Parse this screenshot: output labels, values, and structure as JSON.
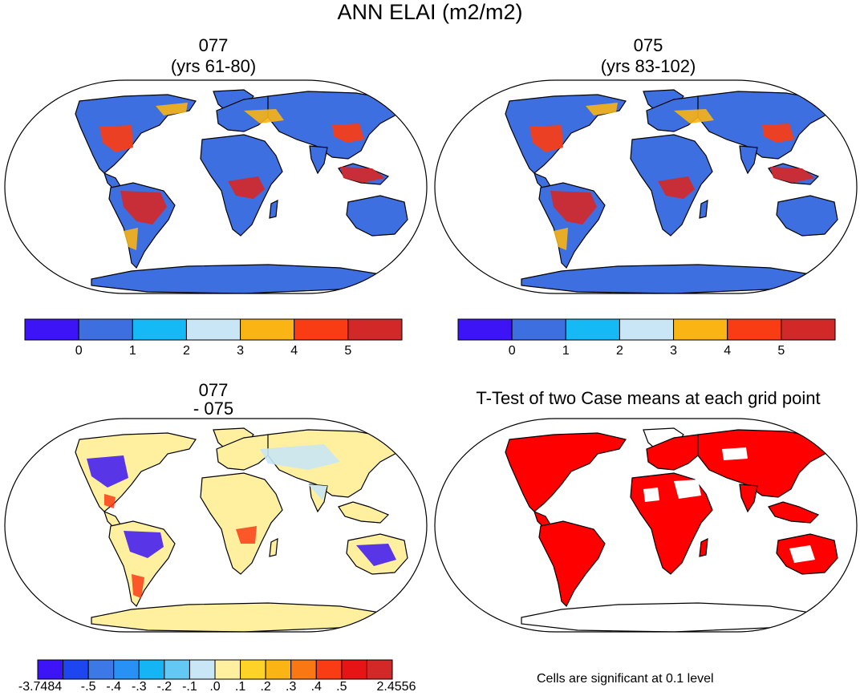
{
  "page_title": "ANN ELAI (m2/m2)",
  "panels": [
    {
      "line1": "077",
      "line2": "(yrs 61-80)"
    },
    {
      "line1": "075",
      "line2": "(yrs 83-102)"
    },
    {
      "line1": "077",
      "line2": "- 075"
    },
    {
      "line1": "T-Test of two Case means at each grid point",
      "line2": ""
    }
  ],
  "colorbar_top": {
    "colors": [
      "#3c14f5",
      "#3e6fe0",
      "#14b9f5",
      "#c8e6f5",
      "#fab414",
      "#fa3c14",
      "#d22828"
    ],
    "ticks": [
      "0",
      "1",
      "2",
      "3",
      "4",
      "5"
    ]
  },
  "colorbar_diff": {
    "colors": [
      "#3c14f5",
      "#1e46f0",
      "#3c78e6",
      "#2891f5",
      "#14b4f5",
      "#64c8f5",
      "#c8e6f5",
      "#fff0a0",
      "#ffd228",
      "#fab414",
      "#fa7814",
      "#fa3c14",
      "#e61414",
      "#d22828"
    ],
    "ticks": [
      "-3.7484",
      "-.5",
      "-.4",
      "-.3",
      "-.2",
      "-.1",
      ".0",
      ".1",
      ".2",
      ".3",
      ".4",
      ".5",
      "2.4556"
    ]
  },
  "significance_note": "Cells are significant at 0.1 level",
  "map_colors": {
    "ocean": "#ffffff",
    "base_low": "#3e6fe0",
    "tropical_high": "#d22828",
    "diff_base": "#fff0a0",
    "significant": "#ff0000"
  }
}
